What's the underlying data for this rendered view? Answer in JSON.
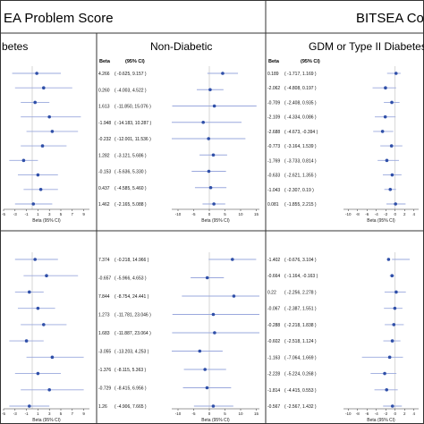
{
  "header": {
    "left_title": "EA Problem Score",
    "right_title": "BITSEA Co"
  },
  "subheaders": {
    "left": "betes",
    "middle": "Non-Diabetic",
    "right": "GDM or Type II Diabetes"
  },
  "column_labels": {
    "beta": "Beta",
    "ci": "(95% CI)",
    "axis_title": "Beta (95% CI)"
  },
  "colors": {
    "point": "#2f4fa8",
    "ci_line": "#9aa8dd",
    "border": "#333333",
    "guide": "#bbbbbb"
  },
  "chart_data": [
    {
      "type": "forest",
      "name_shown": "betes",
      "rows_top": [
        {
          "beta": 0.8,
          "ci": [
            -3.5,
            5.0
          ]
        },
        {
          "beta": 2.0,
          "ci": [
            -3.0,
            7.0
          ]
        },
        {
          "beta": 0.5,
          "ci": [
            -2.0,
            3.0
          ]
        },
        {
          "beta": 3.0,
          "ci": [
            -2.0,
            8.5
          ]
        },
        {
          "beta": 3.5,
          "ci": [
            -1.0,
            8.0
          ]
        },
        {
          "beta": 1.8,
          "ci": [
            -2.0,
            6.0
          ]
        },
        {
          "beta": -1.5,
          "ci": [
            -4.0,
            1.0
          ]
        },
        {
          "beta": 1.0,
          "ci": [
            -2.5,
            4.5
          ]
        },
        {
          "beta": 1.5,
          "ci": [
            -1.5,
            4.5
          ]
        },
        {
          "beta": 0.2,
          "ci": [
            -3.0,
            3.5
          ]
        }
      ],
      "rows_bottom": [
        {
          "beta": 0.5,
          "ci": [
            -3.0,
            4.5
          ]
        },
        {
          "beta": 2.5,
          "ci": [
            -1.5,
            8.0
          ]
        },
        {
          "beta": -0.5,
          "ci": [
            -3.0,
            2.0
          ]
        },
        {
          "beta": 1.0,
          "ci": [
            -2.5,
            4.0
          ]
        },
        {
          "beta": 2.0,
          "ci": [
            -2.0,
            6.0
          ]
        },
        {
          "beta": -1.0,
          "ci": [
            -4.0,
            2.0
          ]
        },
        {
          "beta": 3.5,
          "ci": [
            -1.0,
            9.0
          ]
        },
        {
          "beta": 1.0,
          "ci": [
            -3.0,
            5.0
          ]
        },
        {
          "beta": 3.0,
          "ci": [
            -2.0,
            9.0
          ]
        },
        {
          "beta": -0.5,
          "ci": [
            -4.0,
            3.0
          ]
        }
      ],
      "xlim": [
        -5,
        10
      ],
      "ticks": [
        "-5",
        "-3",
        "-1",
        "1",
        "3",
        "5",
        "7",
        "9"
      ]
    },
    {
      "type": "forest",
      "name_shown": "Non-Diabetic",
      "rows_top": [
        {
          "beta": "4.266",
          "ci": "( -0.625, 9.157 )",
          "beta_num": 4.266,
          "lo": -0.625,
          "hi": 9.157
        },
        {
          "beta": "0.260",
          "ci": "( -4.003, 4.522 )",
          "beta_num": 0.26,
          "lo": -4.003,
          "hi": 4.522
        },
        {
          "beta": "1.613",
          "ci": "( -11.850, 15.076 )",
          "beta_num": 1.613,
          "lo": -11.85,
          "hi": 15.076
        },
        {
          "beta": "-1.948",
          "ci": "( -14.183, 10.287 )",
          "beta_num": -1.948,
          "lo": -14.183,
          "hi": 10.287
        },
        {
          "beta": "-0.232",
          "ci": "( -12.001, 11.536 )",
          "beta_num": -0.232,
          "lo": -12.001,
          "hi": 11.536
        },
        {
          "beta": "1.282",
          "ci": "( -3.121, 5.686 )",
          "beta_num": 1.282,
          "lo": -3.121,
          "hi": 5.686
        },
        {
          "beta": "-0.153",
          "ci": "( -5.636, 5.330 )",
          "beta_num": -0.153,
          "lo": -5.636,
          "hi": 5.33
        },
        {
          "beta": "0.437",
          "ci": "( -4.585, 5.460 )",
          "beta_num": 0.437,
          "lo": -4.585,
          "hi": 5.46
        },
        {
          "beta": "1.462",
          "ci": "( -2.165, 5.088 )",
          "beta_num": 1.462,
          "lo": -2.165,
          "hi": 5.088
        }
      ],
      "rows_bottom": [
        {
          "beta": "7.374",
          "ci": "( -0.218, 14.966 )",
          "beta_num": 7.374,
          "lo": -0.218,
          "hi": 14.966
        },
        {
          "beta": "-0.657",
          "ci": "( -5.966, 4.653 )",
          "beta_num": -0.657,
          "lo": -5.966,
          "hi": 4.653
        },
        {
          "beta": "7.844",
          "ci": "( -8.754, 24.441 )",
          "beta_num": 7.844,
          "lo": -8.754,
          "hi": 24.441
        },
        {
          "beta": "1.273",
          "ci": "( -11.781, 23.046 )",
          "beta_num": 1.273,
          "lo": -11.781,
          "hi": 23.046
        },
        {
          "beta": "1.683",
          "ci": "( -11.887, 23.064 )",
          "beta_num": 1.683,
          "lo": -11.887,
          "hi": 23.064
        },
        {
          "beta": "-3.055",
          "ci": "( -13.203, 4.253 )",
          "beta_num": -3.055,
          "lo": -13.203,
          "hi": 4.253
        },
        {
          "beta": "-1.376",
          "ci": "( -8.115, 5.363 )",
          "beta_num": -1.376,
          "lo": -8.115,
          "hi": 5.363
        },
        {
          "beta": "-0.729",
          "ci": "( -8.415, 6.956 )",
          "beta_num": -0.729,
          "lo": -8.415,
          "hi": 6.956
        },
        {
          "beta": "1.26",
          "ci": "( -4.906, 7.665 )",
          "beta_num": 1.26,
          "lo": -4.906,
          "hi": 7.665
        }
      ],
      "xlim": [
        -12,
        16
      ],
      "ticks": [
        "-10",
        "-5",
        "0",
        "5",
        "10",
        "15"
      ]
    },
    {
      "type": "forest",
      "name_shown": "GDM or Type II Diabetes",
      "rows_top": [
        {
          "beta": "0.189",
          "ci": "( -1.717, 1.169 )",
          "beta_num": 0.189,
          "lo": -1.717,
          "hi": 1.169
        },
        {
          "beta": "-2.062",
          "ci": "( -4.808, 0.197 )",
          "beta_num": -2.062,
          "lo": -4.808,
          "hi": 0.197
        },
        {
          "beta": "-0.709",
          "ci": "( -2.408, 0.935 )",
          "beta_num": -0.709,
          "lo": -2.408,
          "hi": 0.935
        },
        {
          "beta": "-2.109",
          "ci": "( -4.334, 0.086 )",
          "beta_num": -2.109,
          "lo": -4.334,
          "hi": 0.086
        },
        {
          "beta": "-2.688",
          "ci": "( -4.673, -0.394 )",
          "beta_num": -2.688,
          "lo": -4.673,
          "hi": -0.394
        },
        {
          "beta": "-0.773",
          "ci": "( -3.164, 1.539 )",
          "beta_num": -0.773,
          "lo": -3.164,
          "hi": 1.539
        },
        {
          "beta": "-1.769",
          "ci": "( -3.733, 0.814 )",
          "beta_num": -1.769,
          "lo": -3.733,
          "hi": 0.814
        },
        {
          "beta": "-0.633",
          "ci": "( -2.621, 1.355 )",
          "beta_num": -0.633,
          "lo": -2.621,
          "hi": 1.355
        },
        {
          "beta": "-1.043",
          "ci": "( -2.307, 0.19 )",
          "beta_num": -1.043,
          "lo": -2.307,
          "hi": 0.19
        },
        {
          "beta": "0.081",
          "ci": "( -1.855, 2.215 )",
          "beta_num": 0.081,
          "lo": -1.855,
          "hi": 2.215
        }
      ],
      "rows_bottom": [
        {
          "beta": "-1.402",
          "ci": "( -0.676, 3.104 )",
          "beta_num": -1.402,
          "lo": -0.676,
          "hi": 3.104
        },
        {
          "beta": "-0.664",
          "ci": "( -1.164, -0.163 )",
          "beta_num": -0.664,
          "lo": -1.164,
          "hi": -0.163
        },
        {
          "beta": "0.22",
          "ci": "( -2.256, 2.278 )",
          "beta_num": 0.22,
          "lo": -2.256,
          "hi": 2.278
        },
        {
          "beta": "-0.067",
          "ci": "( -2.387, 1.551 )",
          "beta_num": -0.067,
          "lo": -2.387,
          "hi": 1.551
        },
        {
          "beta": "-0.288",
          "ci": "( -2.218, 1.838 )",
          "beta_num": -0.288,
          "lo": -2.218,
          "hi": 1.838
        },
        {
          "beta": "-0.602",
          "ci": "( -2.518, 1.124 )",
          "beta_num": -0.602,
          "lo": -2.518,
          "hi": 1.124
        },
        {
          "beta": "-1.163",
          "ci": "( -7.064, 1.669 )",
          "beta_num": -1.163,
          "lo": -7.064,
          "hi": 1.669
        },
        {
          "beta": "-2.228",
          "ci": "( -5.224, 0.268 )",
          "beta_num": -2.228,
          "lo": -5.224,
          "hi": 0.268
        },
        {
          "beta": "-1.814",
          "ci": "( -4.415, 0.553 )",
          "beta_num": -1.814,
          "lo": -4.415,
          "hi": 0.553
        },
        {
          "beta": "-0.567",
          "ci": "( -2.567, 1.432 )",
          "beta_num": -0.567,
          "lo": -2.567,
          "hi": 1.432
        }
      ],
      "xlim": [
        -11,
        5
      ],
      "ticks": [
        "-10",
        "-8",
        "-6",
        "-4",
        "-2",
        "0",
        "2",
        "4"
      ]
    }
  ]
}
